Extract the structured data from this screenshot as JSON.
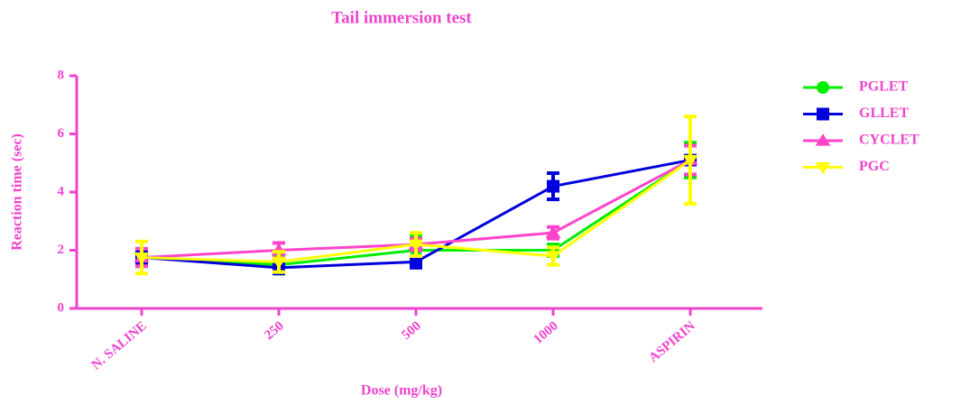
{
  "chart_data": {
    "type": "line",
    "title": "Tail immersion test",
    "x_label": "Dose (mg/kg)",
    "y_label": "Reaction time (sec)",
    "categories": [
      "N. SALINE",
      "250",
      "500",
      "1000",
      "ASPIRIN"
    ],
    "series": [
      {
        "name": "PGLET",
        "color": "#00ee00",
        "marker": "circle",
        "values": [
          1.75,
          1.5,
          2.0,
          2.0,
          5.1
        ],
        "errors": [
          0.3,
          0.3,
          0.5,
          0.2,
          0.6
        ]
      },
      {
        "name": "GLLET",
        "color": "#0000dd",
        "marker": "square",
        "values": [
          1.75,
          1.4,
          1.6,
          4.2,
          5.1
        ],
        "errors": [
          0.2,
          0.2,
          0.2,
          0.45,
          0.5
        ]
      },
      {
        "name": "CYCLET",
        "color": "#ff44cc",
        "marker": "triangle",
        "values": [
          1.75,
          2.0,
          2.2,
          2.6,
          5.1
        ],
        "errors": [
          0.3,
          0.25,
          0.2,
          0.2,
          0.5
        ]
      },
      {
        "name": "PGC",
        "color": "#ffff00",
        "marker": "triangle-down",
        "values": [
          1.75,
          1.6,
          2.2,
          1.8,
          5.1
        ],
        "errors": [
          0.55,
          0.35,
          0.4,
          0.3,
          1.5
        ]
      }
    ],
    "ylim": [
      0,
      8
    ],
    "yticks": [
      0,
      2,
      4,
      6,
      8
    ],
    "axis_color": "#ee44cc",
    "legend": "right"
  }
}
